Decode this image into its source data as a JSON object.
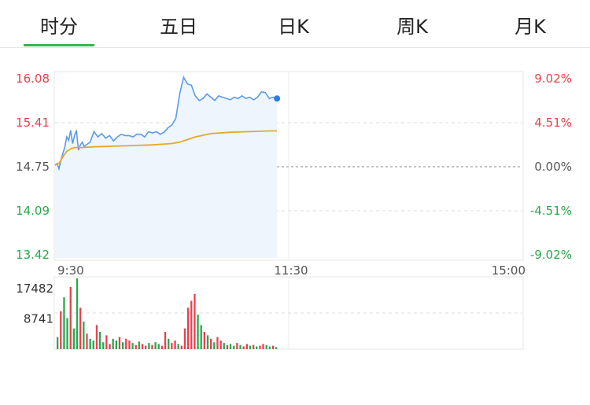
{
  "tabs": [
    {
      "label": "时分",
      "active": true
    },
    {
      "label": "五日",
      "active": false
    },
    {
      "label": "日K",
      "active": false
    },
    {
      "label": "周K",
      "active": false
    },
    {
      "label": "月K",
      "active": false
    }
  ],
  "colors": {
    "up": "#e8414c",
    "down": "#2aa84a",
    "neutral": "#555555",
    "price_line": "#5b9bea",
    "avg_line": "#e9a62a",
    "area_fill": "#eef5fd",
    "accent_tab": "#3bb54a"
  },
  "chart_data": [
    {
      "type": "line",
      "title": "",
      "price_ticks": [
        "16.08",
        "15.41",
        "14.75",
        "14.09",
        "13.42"
      ],
      "pct_ticks": [
        "9.02%",
        "4.51%",
        "0.00%",
        "-4.51%",
        "-9.02%"
      ],
      "time_ticks": [
        "9:30",
        "11:30",
        "15:00"
      ],
      "ylim": [
        13.42,
        16.08
      ],
      "prev_close": 14.75,
      "x_range_minutes": [
        0,
        240
      ],
      "series": [
        {
          "key": "price",
          "x": [
            0,
            1,
            2,
            3,
            4,
            5,
            6,
            7,
            8,
            9,
            10,
            11,
            12,
            13,
            14,
            15,
            16,
            17,
            18,
            19,
            20,
            22,
            24,
            26,
            28,
            30,
            32,
            34,
            36,
            38,
            40,
            42,
            44,
            46,
            48,
            50,
            52,
            54,
            56,
            58,
            60,
            62,
            64,
            66,
            68,
            70,
            72,
            74,
            76,
            78,
            80,
            82,
            84,
            86,
            88,
            90,
            92,
            94,
            96,
            98,
            100,
            102,
            104,
            106,
            108,
            110,
            112,
            114
          ],
          "values": [
            14.77,
            14.8,
            14.72,
            14.85,
            14.95,
            15.05,
            15.2,
            15.15,
            15.3,
            15.1,
            15.22,
            15.3,
            15.0,
            15.08,
            15.12,
            15.05,
            15.08,
            15.1,
            15.12,
            15.2,
            15.28,
            15.2,
            15.25,
            15.18,
            15.22,
            15.14,
            15.2,
            15.24,
            15.22,
            15.22,
            15.2,
            15.24,
            15.24,
            15.2,
            15.28,
            15.26,
            15.28,
            15.24,
            15.27,
            15.34,
            15.38,
            15.48,
            15.85,
            16.1,
            16.0,
            15.98,
            15.82,
            15.75,
            15.78,
            15.85,
            15.8,
            15.75,
            15.82,
            15.8,
            15.78,
            15.76,
            15.8,
            15.78,
            15.82,
            15.78,
            15.8,
            15.76,
            15.8,
            15.88,
            15.87,
            15.78,
            15.8,
            15.78
          ]
        },
        {
          "key": "average",
          "x": [
            0,
            2,
            4,
            6,
            8,
            10,
            14,
            20,
            30,
            40,
            50,
            55,
            60,
            64,
            68,
            72,
            80,
            90,
            100,
            110,
            114
          ],
          "values": [
            14.78,
            14.8,
            14.9,
            14.98,
            15.02,
            15.04,
            15.04,
            15.05,
            15.06,
            15.07,
            15.08,
            15.09,
            15.1,
            15.12,
            15.16,
            15.2,
            15.25,
            15.27,
            15.28,
            15.29,
            15.29
          ]
        }
      ]
    },
    {
      "type": "bar",
      "title": "",
      "volume_ticks": [
        "17482",
        "8741"
      ],
      "ylim": [
        0,
        20500
      ],
      "volumes": [
        3500,
        11000,
        15000,
        9000,
        18000,
        6000,
        20500,
        12000,
        8000,
        4500,
        3000,
        2500,
        7000,
        5000,
        2000,
        4000,
        1500,
        3000,
        2500,
        3500,
        2000,
        3000,
        2500,
        1800,
        1200,
        2200,
        1500,
        1000,
        1800,
        1200,
        2000,
        1500,
        1000,
        5000,
        3000,
        1800,
        2500,
        1500,
        1000,
        6000,
        12000,
        14000,
        16000,
        10000,
        7000,
        5000,
        4000,
        3000,
        2000,
        3500,
        2500,
        1800,
        1200,
        1500,
        1000,
        1800,
        1200,
        800,
        1500,
        1000,
        1200,
        800,
        1000,
        1500,
        1200,
        800,
        1000,
        600
      ],
      "colors": [
        "down",
        "up",
        "down",
        "down",
        "up",
        "down",
        "down",
        "up",
        "down",
        "up",
        "down",
        "down",
        "up",
        "down",
        "down",
        "up",
        "up",
        "down",
        "down",
        "up",
        "down",
        "up",
        "up",
        "down",
        "up",
        "down",
        "up",
        "up",
        "down",
        "up",
        "down",
        "down",
        "up",
        "up",
        "down",
        "up",
        "up",
        "down",
        "up",
        "up",
        "up",
        "up",
        "up",
        "down",
        "down",
        "up",
        "down",
        "up",
        "down",
        "up",
        "up",
        "down",
        "up",
        "down",
        "down",
        "up",
        "down",
        "up",
        "up",
        "down",
        "up",
        "down",
        "up",
        "up",
        "down",
        "down",
        "up",
        "down"
      ]
    }
  ]
}
